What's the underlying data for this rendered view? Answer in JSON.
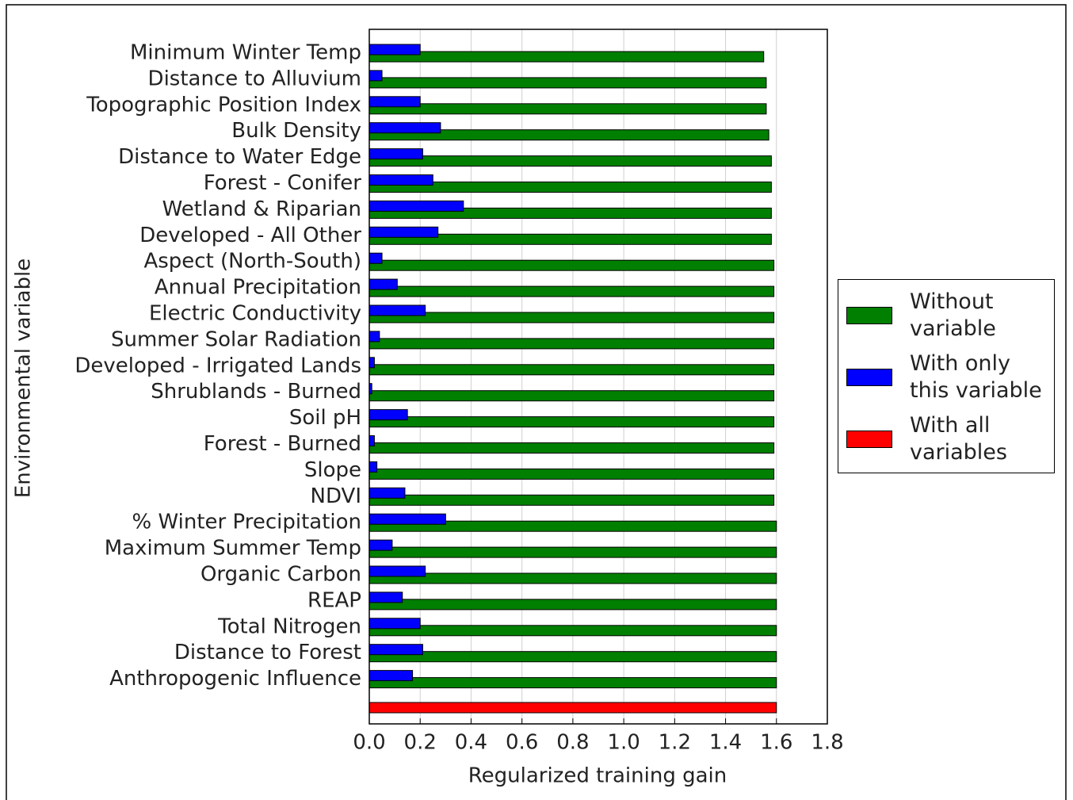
{
  "chart_data": {
    "type": "bar",
    "orientation": "horizontal",
    "xlabel": "Regularized training gain",
    "ylabel": "Environmental variable",
    "categories": [
      "Minimum Winter Temp",
      "Distance to Alluvium",
      "Topographic Position Index",
      "Bulk Density",
      "Distance to Water Edge",
      "Forest - Conifer",
      "Wetland & Riparian",
      "Developed - All Other",
      "Aspect (North-South)",
      "Annual Precipitation",
      "Electric Conductivity",
      "Summer Solar Radiation",
      "Developed - Irrigated Lands",
      "Shrublands - Burned",
      "Soil pH",
      "Forest - Burned",
      "Slope",
      "NDVI",
      "% Winter Precipitation",
      "Maximum Summer Temp",
      "Organic Carbon",
      "REAP",
      "Total Nitrogen",
      "Distance to Forest",
      "Anthropogenic Influence",
      null
    ],
    "series": [
      {
        "name": "Without variable",
        "color": "#007f00",
        "values": [
          1.55,
          1.56,
          1.56,
          1.57,
          1.58,
          1.58,
          1.58,
          1.58,
          1.59,
          1.59,
          1.59,
          1.59,
          1.59,
          1.59,
          1.59,
          1.59,
          1.59,
          1.59,
          1.6,
          1.6,
          1.6,
          1.6,
          1.6,
          1.6,
          1.6,
          null
        ]
      },
      {
        "name": "With only this variable",
        "color": "#0000ff",
        "values": [
          0.2,
          0.05,
          0.2,
          0.28,
          0.21,
          0.25,
          0.37,
          0.27,
          0.05,
          0.11,
          0.22,
          0.04,
          0.02,
          0.01,
          0.15,
          0.02,
          0.03,
          0.14,
          0.3,
          0.09,
          0.22,
          0.13,
          0.2,
          0.21,
          0.17,
          null
        ]
      },
      {
        "name": "With all variables",
        "color": "#ff0000",
        "values": [
          null,
          null,
          null,
          null,
          null,
          null,
          null,
          null,
          null,
          null,
          null,
          null,
          null,
          null,
          null,
          null,
          null,
          null,
          null,
          null,
          null,
          null,
          null,
          null,
          null,
          1.6
        ]
      }
    ],
    "xlim": [
      0,
      1.8
    ],
    "xticks": [
      {
        "value": 0,
        "label": "0.0"
      },
      0.2,
      0.4,
      0.6,
      0.8,
      {
        "value": 1,
        "label": "1.0"
      },
      1.2,
      1.4,
      1.6,
      1.8
    ],
    "grid": true
  }
}
